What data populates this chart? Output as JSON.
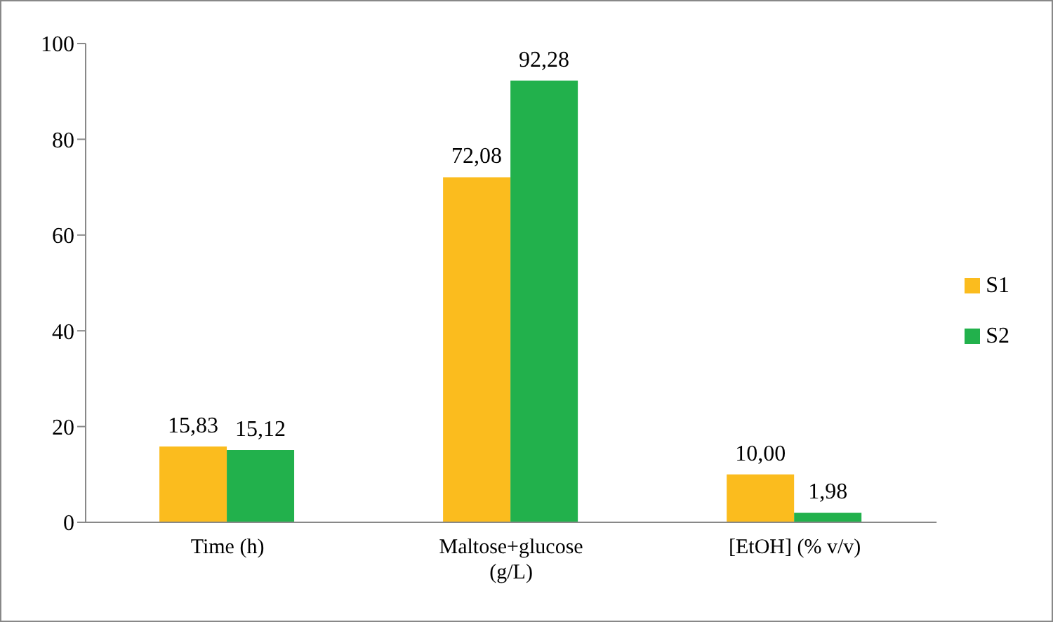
{
  "chart_data": {
    "type": "bar",
    "categories": [
      "Time (h)",
      "Maltose+glucose (g/L)",
      "[EtOH] (% v/v)"
    ],
    "series": [
      {
        "name": "S1",
        "color": "#fbbc1e",
        "values": [
          15.83,
          72.08,
          10.0
        ],
        "value_labels": [
          "15,83",
          "72,08",
          "10,00"
        ]
      },
      {
        "name": "S2",
        "color": "#22b14c",
        "values": [
          15.12,
          92.28,
          1.98
        ],
        "value_labels": [
          "15,12",
          "92,28",
          "1,98"
        ]
      }
    ],
    "ylim": [
      0,
      100
    ],
    "yticks": [
      0,
      20,
      40,
      60,
      80,
      100
    ],
    "grid": false,
    "legend": "right"
  }
}
